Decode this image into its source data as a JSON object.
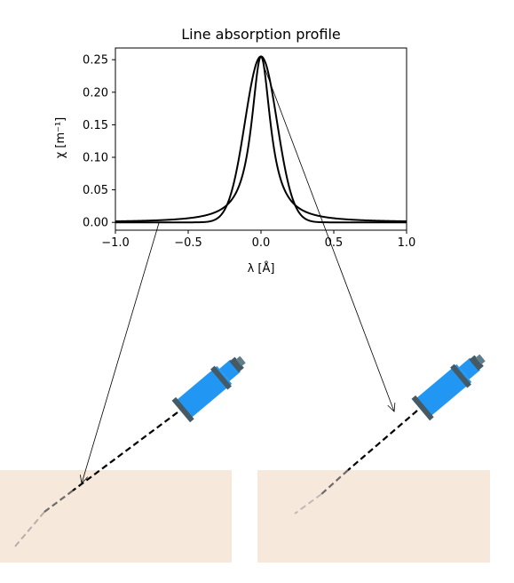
{
  "chart_data": {
    "type": "line",
    "title": "Line absorption profile",
    "xlabel": "λ [Å]",
    "ylabel": "χ [m⁻¹]",
    "xlim": [
      -1.0,
      1.0
    ],
    "ylim": [
      -0.012,
      0.268
    ],
    "x_ticks": [
      -1.0,
      -0.5,
      0.0,
      0.5,
      1.0
    ],
    "x_tick_labels": [
      "−1.0",
      "−0.5",
      "0.0",
      "0.5",
      "1.0"
    ],
    "y_ticks": [
      0.0,
      0.05,
      0.1,
      0.15,
      0.2,
      0.25
    ],
    "y_tick_labels": [
      "0.00",
      "0.05",
      "0.10",
      "0.15",
      "0.20",
      "0.25"
    ],
    "grid": false,
    "series": [
      {
        "profile": "lorentzian",
        "peak_x": 0.0,
        "peak_y": 0.255,
        "half_width": 0.08,
        "color": "#000000"
      },
      {
        "profile": "gaussian",
        "peak_x": 0.0,
        "peak_y": 0.255,
        "sigma": 0.11,
        "color": "#000000"
      }
    ],
    "pointers": [
      {
        "from_x": -0.7,
        "from_y": 0.0
      },
      {
        "from_x": 0.02,
        "from_y": 0.24
      }
    ]
  },
  "colors": {
    "medium": "#f7e8dc",
    "telescope_body": "#2196f3",
    "telescope_band": "#455a64",
    "telescope_eyepiece": "#607d8b",
    "beam": "#000000"
  },
  "icons": [
    "telescope-icon",
    "telescope-icon"
  ]
}
